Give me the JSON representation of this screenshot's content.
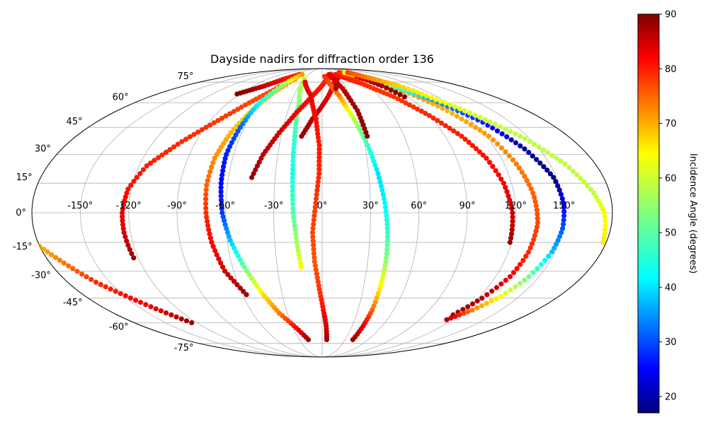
{
  "chart_data": {
    "type": "scatter",
    "projection": "mollweide",
    "title": "Dayside nadirs for diffraction order 136",
    "colorbar": {
      "label": "Incidence Angle (degrees)",
      "colormap": "jet",
      "range": [
        17,
        90
      ],
      "ticks": [
        "20",
        "30",
        "40",
        "50",
        "60",
        "70",
        "80",
        "90"
      ],
      "tick_values": [
        20,
        30,
        40,
        50,
        60,
        70,
        80,
        90
      ]
    },
    "longitude_ticks": [
      "-150°",
      "-120°",
      "-90°",
      "-60°",
      "-30°",
      "0°",
      "30°",
      "60°",
      "90°",
      "120°",
      "150°"
    ],
    "longitude_tick_values": [
      -150,
      -120,
      -90,
      -60,
      -30,
      0,
      30,
      60,
      90,
      120,
      150
    ],
    "latitude_ticks": [
      "75°",
      "60°",
      "45°",
      "30°",
      "15°",
      "0°",
      "-15°",
      "-30°",
      "-45°",
      "-60°",
      "-75°"
    ],
    "latitude_tick_values": [
      75,
      60,
      45,
      30,
      15,
      0,
      -15,
      -30,
      -45,
      -60,
      -75
    ],
    "grid": true,
    "legend": "none",
    "tracks": [
      {
        "points": [
          [
            -93,
            66,
            90
          ],
          [
            -75,
            72,
            85
          ],
          [
            -62,
            78,
            80
          ],
          [
            -50,
            82,
            78
          ]
        ]
      },
      {
        "points": [
          [
            -180,
            -17,
            68
          ],
          [
            -160,
            -36,
            78
          ],
          [
            -140,
            -50,
            82
          ],
          [
            -125,
            -60,
            88
          ]
        ]
      },
      {
        "points": [
          [
            -123,
            -23,
            88
          ],
          [
            -124,
            -10,
            84
          ],
          [
            -124,
            0,
            82
          ],
          [
            -122,
            12,
            80
          ],
          [
            -115,
            24,
            79
          ],
          [
            -100,
            37,
            78
          ],
          [
            -84,
            49,
            77
          ],
          [
            -70,
            60,
            76
          ],
          [
            -56,
            70,
            75
          ],
          [
            -45,
            78,
            75
          ]
        ]
      },
      {
        "points": [
          [
            -57,
            -43,
            88
          ],
          [
            -66,
            -30,
            84
          ],
          [
            -70,
            -15,
            81
          ],
          [
            -72,
            0,
            78
          ],
          [
            -73,
            14,
            74
          ],
          [
            -72,
            28,
            71
          ],
          [
            -68,
            42,
            68
          ],
          [
            -62,
            55,
            65
          ],
          [
            -55,
            66,
            68
          ],
          [
            -48,
            75,
            72
          ]
        ]
      },
      {
        "points": [
          [
            -44,
            82,
            70
          ],
          [
            -53,
            72,
            55
          ],
          [
            -60,
            60,
            45
          ],
          [
            -63,
            45,
            33
          ],
          [
            -65,
            30,
            28
          ],
          [
            -64,
            15,
            26
          ],
          [
            -62,
            0,
            30
          ],
          [
            -58,
            -14,
            40
          ],
          [
            -52,
            -28,
            52
          ],
          [
            -45,
            -42,
            64
          ],
          [
            -37,
            -54,
            72
          ],
          [
            -25,
            -65,
            82
          ],
          [
            -18,
            -72,
            88
          ]
        ]
      },
      {
        "points": [
          [
            -30,
            78,
            58
          ],
          [
            -22,
            60,
            54
          ],
          [
            -20,
            40,
            48
          ],
          [
            -19,
            20,
            46
          ],
          [
            -18,
            0,
            50
          ],
          [
            -16,
            -15,
            56
          ],
          [
            -14,
            -28,
            62
          ]
        ]
      },
      {
        "points": [
          [
            -45,
            18,
            88
          ],
          [
            -40,
            30,
            86
          ],
          [
            -32,
            42,
            84
          ],
          [
            -22,
            54,
            82
          ],
          [
            -10,
            65,
            80
          ],
          [
            5,
            76,
            79
          ],
          [
            20,
            82,
            79
          ]
        ]
      },
      {
        "points": [
          [
            -15,
            40,
            88
          ],
          [
            -8,
            50,
            86
          ],
          [
            2,
            60,
            84
          ],
          [
            12,
            70,
            82
          ],
          [
            25,
            80,
            80
          ]
        ]
      },
      {
        "points": [
          [
            -25,
            75,
            82
          ],
          [
            -12,
            65,
            82
          ],
          [
            -5,
            50,
            80
          ],
          [
            -2,
            35,
            79
          ],
          [
            -2,
            20,
            78
          ],
          [
            -4,
            5,
            77
          ],
          [
            -6,
            -10,
            76
          ],
          [
            -5,
            -25,
            75
          ],
          [
            -2,
            -40,
            77
          ],
          [
            1,
            -52,
            80
          ],
          [
            4,
            -62,
            84
          ],
          [
            6,
            -72,
            88
          ]
        ]
      },
      {
        "points": [
          [
            5,
            80,
            78
          ],
          [
            18,
            65,
            72
          ],
          [
            26,
            50,
            58
          ],
          [
            32,
            35,
            48
          ],
          [
            36,
            20,
            42
          ],
          [
            39,
            5,
            44
          ],
          [
            41,
            -10,
            48
          ],
          [
            42,
            -25,
            55
          ],
          [
            42,
            -40,
            64
          ],
          [
            42,
            -52,
            74
          ],
          [
            41,
            -62,
            82
          ],
          [
            40,
            -72,
            88
          ]
        ]
      },
      {
        "points": [
          [
            17,
            70,
            88
          ],
          [
            22,
            76,
            86
          ],
          [
            30,
            80,
            84
          ]
        ]
      },
      {
        "points": [
          [
            15,
            82,
            82
          ],
          [
            25,
            70,
            86
          ],
          [
            31,
            55,
            88
          ],
          [
            33,
            40,
            90
          ]
        ]
      },
      {
        "points": [
          [
            30,
            82,
            80
          ],
          [
            55,
            74,
            78
          ],
          [
            75,
            64,
            77
          ],
          [
            90,
            52,
            78
          ],
          [
            102,
            40,
            79
          ],
          [
            110,
            28,
            80
          ],
          [
            115,
            15,
            82
          ],
          [
            118,
            0,
            84
          ],
          [
            119,
            -15,
            88
          ]
        ]
      },
      {
        "points": [
          [
            45,
            84,
            78
          ],
          [
            70,
            78,
            74
          ],
          [
            95,
            68,
            70
          ],
          [
            110,
            55,
            68
          ],
          [
            122,
            40,
            70
          ],
          [
            128,
            25,
            72
          ],
          [
            132,
            10,
            74
          ],
          [
            134,
            -5,
            76
          ],
          [
            133,
            -20,
            78
          ],
          [
            130,
            -33,
            82
          ],
          [
            123,
            -45,
            86
          ],
          [
            115,
            -55,
            88
          ]
        ]
      },
      {
        "points": [
          [
            60,
            84,
            62
          ],
          [
            85,
            75,
            55
          ],
          [
            110,
            62,
            38
          ],
          [
            128,
            48,
            28
          ],
          [
            140,
            33,
            19
          ],
          [
            148,
            18,
            17
          ],
          [
            150,
            5,
            25
          ],
          [
            150,
            -8,
            32
          ],
          [
            148,
            -20,
            40
          ],
          [
            143,
            -33,
            52
          ],
          [
            136,
            -44,
            62
          ],
          [
            126,
            -52,
            72
          ],
          [
            115,
            -58,
            86
          ]
        ]
      },
      {
        "points": [
          [
            66,
            80,
            82
          ],
          [
            78,
            72,
            88
          ],
          [
            86,
            64,
            90
          ]
        ]
      },
      {
        "points": [
          [
            68,
            84,
            76
          ],
          [
            100,
            72,
            66
          ],
          [
            125,
            55,
            60
          ],
          [
            145,
            40,
            58
          ],
          [
            160,
            25,
            58
          ],
          [
            170,
            10,
            58
          ],
          [
            175,
            0,
            62
          ],
          [
            178,
            -15,
            64
          ]
        ]
      }
    ]
  }
}
